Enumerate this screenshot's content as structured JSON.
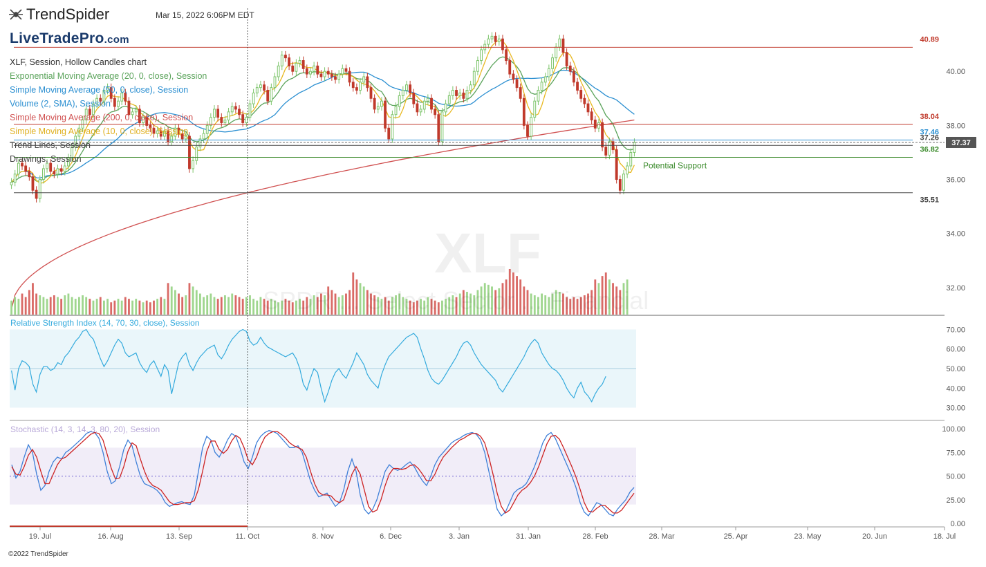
{
  "header": {
    "logo_text": "TrendSpider",
    "timestamp": "Mar 15, 2022 6:06PM EDT",
    "brand": "LiveTradePro",
    "brand_suffix": ".com",
    "footer": "©2022 TrendSpider",
    "watermark_ticker": "XLF",
    "watermark_name": "SPDR ... Select Sector ... Financial"
  },
  "legend": [
    {
      "text": "XLF, Session, Hollow Candles chart",
      "color": "#333333"
    },
    {
      "text": "Exponential Moving Average (20, 0, close), Session",
      "color": "#5aa35a"
    },
    {
      "text": "Simple Moving Average (50, 0, close), Session",
      "color": "#2b8fd1"
    },
    {
      "text": "Volume (2, SMA), Session",
      "color": "#2b8fd1"
    },
    {
      "text": "Simple Moving Average (200, 0, close), Session",
      "color": "#d05050"
    },
    {
      "text": "Simple Moving Average (10, 0, close), Session",
      "color": "#e0b020"
    },
    {
      "text": "Trend Lines, Session",
      "color": "#444444"
    },
    {
      "text": "Drawings, Session",
      "color": "#444444"
    }
  ],
  "colors": {
    "up": "#7cc46a",
    "down": "#c0392b",
    "ema20": "#5aa35a",
    "sma50": "#2b8fd1",
    "sma200": "#d05050",
    "sma10": "#e8b820",
    "rsi": "#33aadd",
    "stoch_k": "#3d7fd8",
    "stoch_d": "#cc2222",
    "rsi_band": "#eaf6fa",
    "stoch_band": "#f1edf8"
  },
  "chart_data": [
    {
      "type": "candlestick",
      "title": "XLF, Session, Hollow Candles chart",
      "x_ticks": [
        "19. Jul",
        "16. Aug",
        "13. Sep",
        "11. Oct",
        "8. Nov",
        "6. Dec",
        "3. Jan",
        "31. Jan",
        "28. Feb",
        "28. Mar",
        "25. Apr",
        "23. May",
        "20. Jun",
        "18. Jul"
      ],
      "y_ticks": [
        32.0,
        34.0,
        36.0,
        38.0,
        40.0
      ],
      "ylim": [
        31.0,
        42.0
      ],
      "current_price": "37.37",
      "levels": [
        {
          "value": 40.89,
          "label": "40.89",
          "color": "#c0392b"
        },
        {
          "value": 38.04,
          "label": "38.04",
          "color": "#c0392b"
        },
        {
          "value": 37.46,
          "label": "37.46",
          "color": "#2b8fd1"
        },
        {
          "value": 37.26,
          "label": "37.26",
          "color": "#444444"
        },
        {
          "value": 36.82,
          "label": "36.82",
          "color": "#3a8a2a",
          "annotation": "Potential Support"
        },
        {
          "value": 35.51,
          "label": "35.51",
          "color": "#444444"
        }
      ],
      "close": [
        35.9,
        36.2,
        36.6,
        36.5,
        36.3,
        36.1,
        35.6,
        35.3,
        36.0,
        36.4,
        36.6,
        36.3,
        36.2,
        36.4,
        36.3,
        36.5,
        36.8,
        37.2,
        37.6,
        37.9,
        38.2,
        38.6,
        38.4,
        38.8,
        39.0,
        38.9,
        39.3,
        39.4,
        39.0,
        38.7,
        38.9,
        39.2,
        38.9,
        38.4,
        38.5,
        38.6,
        38.1,
        38.3,
        38.0,
        37.9,
        37.7,
        37.8,
        37.6,
        37.8,
        37.4,
        37.6,
        37.9,
        37.7,
        37.5,
        37.6,
        36.4,
        36.7,
        37.2,
        37.5,
        37.7,
        38.0,
        38.3,
        38.6,
        38.3,
        38.1,
        38.2,
        38.5,
        38.7,
        38.6,
        38.4,
        38.1,
        38.3,
        38.8,
        39.2,
        39.4,
        39.5,
        39.3,
        38.9,
        39.4,
        39.8,
        40.2,
        40.6,
        40.5,
        40.2,
        40.0,
        40.3,
        40.4,
        40.1,
        39.9,
        40.0,
        40.2,
        39.9,
        39.8,
        40.0,
        39.9,
        39.8,
        39.7,
        39.9,
        40.1,
        40.0,
        39.6,
        39.4,
        39.3,
        39.6,
        39.8,
        39.4,
        39.0,
        38.6,
        38.7,
        38.9,
        37.9,
        37.5,
        38.4,
        38.7,
        39.1,
        39.3,
        39.5,
        39.2,
        38.8,
        38.5,
        38.6,
        38.9,
        39.0,
        38.6,
        38.4,
        37.4,
        38.5,
        38.8,
        39.1,
        39.3,
        39.1,
        39.2,
        39.0,
        39.3,
        39.5,
        40.0,
        40.4,
        40.8,
        41.0,
        41.2,
        41.3,
        41.1,
        41.2,
        40.8,
        40.4,
        39.9,
        39.7,
        39.4,
        39.0,
        38.0,
        37.6,
        38.3,
        38.9,
        39.3,
        39.6,
        39.8,
        40.1,
        40.5,
        40.9,
        41.2,
        40.7,
        40.2,
        40.0,
        39.6,
        39.3,
        39.0,
        38.8,
        38.5,
        38.2,
        37.9,
        38.1,
        37.2,
        36.9,
        37.4,
        37.1,
        36.0,
        35.6,
        36.2,
        36.5,
        37.0,
        37.37
      ]
    },
    {
      "type": "bar",
      "title": "Volume (2, SMA), Session",
      "values": [
        0.4,
        0.5,
        0.45,
        0.6,
        0.5,
        0.7,
        0.9,
        0.6,
        0.55,
        0.5,
        0.45,
        0.5,
        0.55,
        0.5,
        0.45,
        0.55,
        0.6,
        0.5,
        0.45,
        0.5,
        0.55,
        0.5,
        0.45,
        0.4,
        0.45,
        0.5,
        0.4,
        0.45,
        0.35,
        0.4,
        0.45,
        0.4,
        0.5,
        0.45,
        0.4,
        0.45,
        0.4,
        0.35,
        0.4,
        0.35,
        0.4,
        0.45,
        0.5,
        0.45,
        0.9,
        0.8,
        0.7,
        0.6,
        0.5,
        0.55,
        0.9,
        0.8,
        0.7,
        0.6,
        0.5,
        0.55,
        0.6,
        0.5,
        0.45,
        0.5,
        0.55,
        0.5,
        0.6,
        0.55,
        0.5,
        0.45,
        0.5,
        0.55,
        0.45,
        0.4,
        0.5,
        0.45,
        0.4,
        0.45,
        0.4,
        0.35,
        0.4,
        0.45,
        0.4,
        0.35,
        0.4,
        0.45,
        0.4,
        0.5,
        0.45,
        0.55,
        0.5,
        0.6,
        0.55,
        0.8,
        0.7,
        0.6,
        0.5,
        0.55,
        0.6,
        0.7,
        1.2,
        1.0,
        0.9,
        0.8,
        0.7,
        0.6,
        0.55,
        0.5,
        0.45,
        0.5,
        0.4,
        0.5,
        0.55,
        0.6,
        0.5,
        0.45,
        0.4,
        0.35,
        0.4,
        0.45,
        0.4,
        0.5,
        0.45,
        0.4,
        0.35,
        0.4,
        0.45,
        0.5,
        0.55,
        0.5,
        0.6,
        0.7,
        0.65,
        0.6,
        0.55,
        0.7,
        0.8,
        0.9,
        0.85,
        0.8,
        0.7,
        0.75,
        0.9,
        1.0,
        1.3,
        1.2,
        1.1,
        1.0,
        0.8,
        0.7,
        0.6,
        0.55,
        0.5,
        0.6,
        0.55,
        0.5,
        0.6,
        0.7,
        0.65,
        0.6,
        0.5,
        0.45,
        0.5,
        0.45,
        0.5,
        0.55,
        0.6,
        0.7,
        1.0,
        0.9,
        1.1,
        1.2,
        1.0,
        0.9,
        0.8,
        0.7,
        0.9,
        1.0
      ]
    },
    {
      "type": "line",
      "title": "Relative Strength Index (14, 70, 30, close), Session",
      "y_ticks": [
        30.0,
        40.0,
        50.0,
        60.0,
        70.0
      ],
      "ylim": [
        27,
        73
      ],
      "bands": [
        30,
        70
      ],
      "midline": 50,
      "series": [
        {
          "name": "Relative Strength Index (14, 70, 30, close), Session",
          "values": [
            49,
            39,
            50,
            54,
            53,
            51,
            42,
            38,
            47,
            51,
            51,
            49,
            50,
            53,
            52,
            56,
            58,
            61,
            64,
            66,
            69,
            70,
            67,
            65,
            60,
            55,
            51,
            54,
            58,
            62,
            65,
            63,
            58,
            56,
            57,
            58,
            53,
            50,
            48,
            52,
            54,
            50,
            46,
            52,
            49,
            37,
            45,
            53,
            56,
            58,
            52,
            49,
            53,
            56,
            58,
            60,
            61,
            62,
            57,
            55,
            58,
            62,
            65,
            67,
            69,
            70,
            69,
            64,
            62,
            63,
            66,
            63,
            61,
            60,
            59,
            58,
            57,
            56,
            57,
            58,
            55,
            50,
            42,
            39,
            45,
            50,
            48,
            40,
            33,
            38,
            44,
            48,
            50,
            47,
            45,
            49,
            53,
            58,
            55,
            52,
            47,
            44,
            42,
            40,
            47,
            52,
            56,
            58,
            60,
            62,
            64,
            66,
            67,
            68,
            66,
            60,
            55,
            49,
            45,
            43,
            42,
            44,
            47,
            50,
            53,
            56,
            60,
            63,
            64,
            62,
            58,
            55,
            52,
            50,
            48,
            46,
            44,
            40,
            38,
            41,
            44,
            47,
            50,
            53,
            56,
            60,
            63,
            65,
            63,
            58,
            55,
            52,
            50,
            49,
            47,
            44,
            40,
            37,
            35,
            40,
            43,
            38,
            36,
            33,
            37,
            40,
            42,
            46
          ]
        }
      ]
    },
    {
      "type": "line",
      "title": "Stochastic (14, 3, 14, 3, 80, 20), Session",
      "y_ticks": [
        0.0,
        25.0,
        50.0,
        75.0,
        100.0
      ],
      "ylim": [
        0,
        100
      ],
      "bands": [
        20,
        80
      ],
      "midline": 50,
      "series": [
        {
          "name": "Stochastic %K",
          "values": [
            62,
            48,
            55,
            70,
            83,
            75,
            52,
            35,
            40,
            55,
            65,
            70,
            68,
            75,
            78,
            82,
            86,
            90,
            95,
            97,
            96,
            90,
            75,
            55,
            42,
            45,
            60,
            78,
            88,
            82,
            65,
            50,
            42,
            40,
            38,
            35,
            30,
            22,
            18,
            20,
            22,
            23,
            21,
            20,
            30,
            55,
            80,
            92,
            88,
            75,
            70,
            78,
            88,
            95,
            92,
            80,
            65,
            58,
            70,
            85,
            92,
            96,
            98,
            97,
            95,
            90,
            85,
            80,
            80,
            82,
            75,
            60,
            45,
            35,
            28,
            30,
            32,
            25,
            18,
            22,
            35,
            55,
            68,
            55,
            30,
            15,
            10,
            15,
            25,
            40,
            55,
            62,
            58,
            56,
            58,
            62,
            65,
            60,
            52,
            45,
            40,
            50,
            62,
            70,
            75,
            80,
            85,
            88,
            90,
            93,
            95,
            96,
            94,
            88,
            75,
            55,
            35,
            15,
            8,
            12,
            22,
            32,
            36,
            38,
            42,
            50,
            60,
            72,
            85,
            93,
            96,
            90,
            80,
            70,
            60,
            50,
            38,
            22,
            12,
            8,
            15,
            22,
            20,
            15,
            10,
            8,
            15,
            20,
            25,
            33,
            38
          ]
        },
        {
          "name": "Stochastic %D",
          "values": [
            60,
            52,
            51,
            60,
            72,
            78,
            70,
            55,
            42,
            42,
            52,
            62,
            68,
            70,
            74,
            78,
            82,
            86,
            90,
            94,
            96,
            95,
            88,
            73,
            58,
            47,
            48,
            60,
            76,
            85,
            82,
            68,
            55,
            45,
            40,
            38,
            35,
            29,
            23,
            20,
            20,
            21,
            22,
            22,
            24,
            36,
            55,
            76,
            87,
            87,
            78,
            74,
            78,
            87,
            93,
            90,
            80,
            67,
            62,
            70,
            82,
            91,
            95,
            97,
            97,
            94,
            90,
            85,
            82,
            80,
            78,
            70,
            55,
            42,
            33,
            30,
            30,
            29,
            24,
            22,
            25,
            38,
            52,
            60,
            52,
            35,
            18,
            12,
            14,
            25,
            40,
            52,
            58,
            58,
            57,
            58,
            61,
            62,
            58,
            52,
            45,
            45,
            52,
            62,
            70,
            75,
            80,
            84,
            88,
            90,
            93,
            95,
            95,
            92,
            85,
            70,
            52,
            32,
            18,
            11,
            14,
            22,
            30,
            35,
            38,
            43,
            50,
            60,
            72,
            84,
            92,
            93,
            89,
            80,
            70,
            60,
            49,
            36,
            22,
            13,
            12,
            16,
            19,
            19,
            15,
            11,
            11,
            14,
            20,
            26,
            32
          ]
        }
      ]
    }
  ]
}
